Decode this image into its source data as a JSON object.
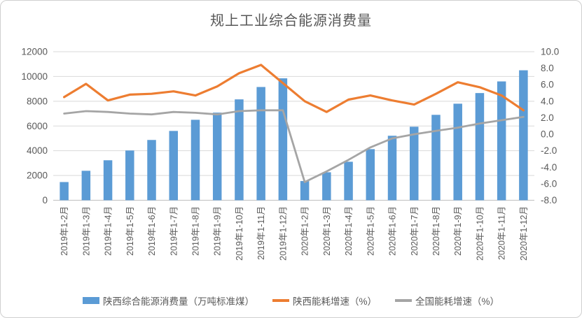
{
  "title": "规上工业综合能源消费量",
  "legend": [
    {
      "label": "陕西综合能源消费量（万吨标准煤）",
      "type": "bar",
      "color": "#5B9BD5"
    },
    {
      "label": "陕西能耗增速（%）",
      "type": "line",
      "color": "#ED7D31"
    },
    {
      "label": "全国能耗增速（%）",
      "type": "line",
      "color": "#A5A5A5"
    }
  ],
  "chart_data": {
    "type": "combo_bar_line_dual_axis",
    "title": "规上工业综合能源消费量",
    "categories": [
      "2019年1-2月",
      "2019年1-3月",
      "2019年1-4月",
      "2019年1-5月",
      "2019年1-6月",
      "2019年1-7月",
      "2019年1-8月",
      "2019年1-9月",
      "2019年1-10月",
      "2019年1-11月",
      "2019年1-12月",
      "2020年1-2月",
      "2020年1-3月",
      "2020年1-4月",
      "2020年1-5月",
      "2020年1-6月",
      "2020年1-7月",
      "2020年1-8月",
      "2020年1-9月",
      "2020年1-10月",
      "2020年1-11月",
      "2020年1-12月"
    ],
    "series": [
      {
        "name": "陕西综合能源消费量（万吨标准煤）",
        "type": "bar",
        "axis": "left",
        "color": "#5B9BD5",
        "values": [
          1470,
          2380,
          3230,
          4020,
          4870,
          5600,
          6500,
          7080,
          8150,
          9150,
          9850,
          1550,
          2260,
          3110,
          4130,
          5210,
          5940,
          6900,
          7800,
          8660,
          9600,
          10500
        ]
      },
      {
        "name": "陕西能耗增速（%）",
        "type": "line",
        "axis": "right",
        "color": "#ED7D31",
        "values": [
          4.5,
          6.1,
          4.1,
          4.8,
          4.9,
          5.2,
          4.7,
          5.8,
          7.4,
          8.4,
          6.2,
          4.0,
          2.7,
          4.2,
          4.7,
          4.1,
          3.6,
          4.9,
          6.3,
          5.7,
          4.7,
          2.9
        ]
      },
      {
        "name": "全国能耗增速（%）",
        "type": "line",
        "axis": "right",
        "color": "#A5A5A5",
        "values": [
          2.5,
          2.8,
          2.7,
          2.5,
          2.4,
          2.7,
          2.6,
          2.4,
          2.8,
          2.9,
          2.9,
          -5.8,
          -4.5,
          -3.1,
          -1.6,
          -0.5,
          0.0,
          0.4,
          0.8,
          1.3,
          1.7,
          2.1
        ]
      }
    ],
    "left_axis": {
      "min": 0,
      "max": 12000,
      "step": 2000,
      "ticks": [
        "0",
        "2000",
        "4000",
        "6000",
        "8000",
        "10000",
        "12000"
      ]
    },
    "right_axis": {
      "min": -8,
      "max": 10,
      "step": 2,
      "ticks": [
        "-8.0",
        "-6.0",
        "-4.0",
        "-2.0",
        "0.0",
        "2.0",
        "4.0",
        "6.0",
        "8.0",
        "10.0"
      ]
    },
    "grid": "horizontal",
    "legend_position": "bottom",
    "gridline_color": "#D9D9D9",
    "axis_line_color": "#BFBFBF",
    "tick_label_color": "#595959"
  }
}
